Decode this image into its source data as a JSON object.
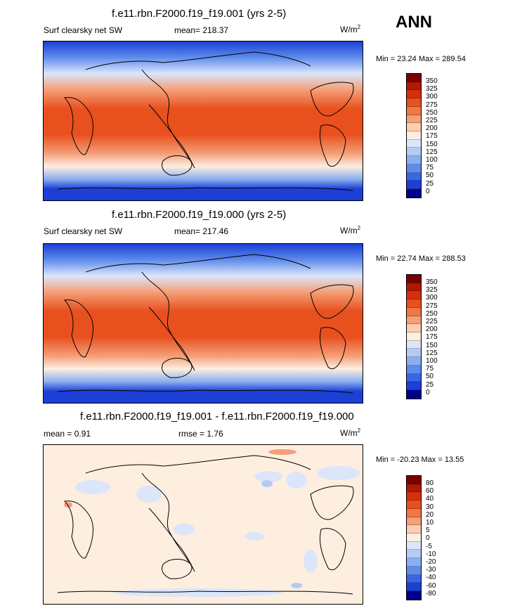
{
  "season": "ANN",
  "panels": [
    {
      "title": "f.e11.rbn.F2000.f19_f19.001 (yrs 2-5)",
      "variable": "Surf clearsky net SW",
      "mean_text": "mean= 218.37",
      "units_base": "W/m",
      "units_exp": "2",
      "minmax": "Min =  23.24 Max = 289.54",
      "levels": [
        "350",
        "325",
        "300",
        "275",
        "250",
        "225",
        "200",
        "175",
        "150",
        "125",
        "100",
        "75",
        "50",
        "25",
        "0"
      ]
    },
    {
      "title": "f.e11.rbn.F2000.f19_f19.000 (yrs 2-5)",
      "variable": "Surf clearsky net SW",
      "mean_text": "mean= 217.46",
      "units_base": "W/m",
      "units_exp": "2",
      "minmax": "Min =  22.74 Max = 288.53",
      "levels": [
        "350",
        "325",
        "300",
        "275",
        "250",
        "225",
        "200",
        "175",
        "150",
        "125",
        "100",
        "75",
        "50",
        "25",
        "0"
      ]
    },
    {
      "title": "f.e11.rbn.F2000.f19_f19.001 - f.e11.rbn.F2000.f19_f19.000",
      "variable": "mean =   0.91",
      "mean_text": "rmse =   1.76",
      "units_base": "W/m",
      "units_exp": "2",
      "minmax": "Min = -20.23 Max =  13.55",
      "levels": [
        "80",
        "60",
        "40",
        "30",
        "20",
        "10",
        "5",
        "0",
        "-5",
        "-10",
        "-20",
        "-30",
        "-40",
        "-60",
        "-80"
      ]
    }
  ],
  "colors": {
    "scale": [
      "#7a0000",
      "#b01a00",
      "#d43010",
      "#e8501e",
      "#f07844",
      "#f59f78",
      "#fbcdb2",
      "#fdeee0",
      "#dbe6fb",
      "#b4cbf4",
      "#8aaeef",
      "#5f8ceb",
      "#3a66e6",
      "#1c3fd6",
      "#00008a"
    ]
  }
}
